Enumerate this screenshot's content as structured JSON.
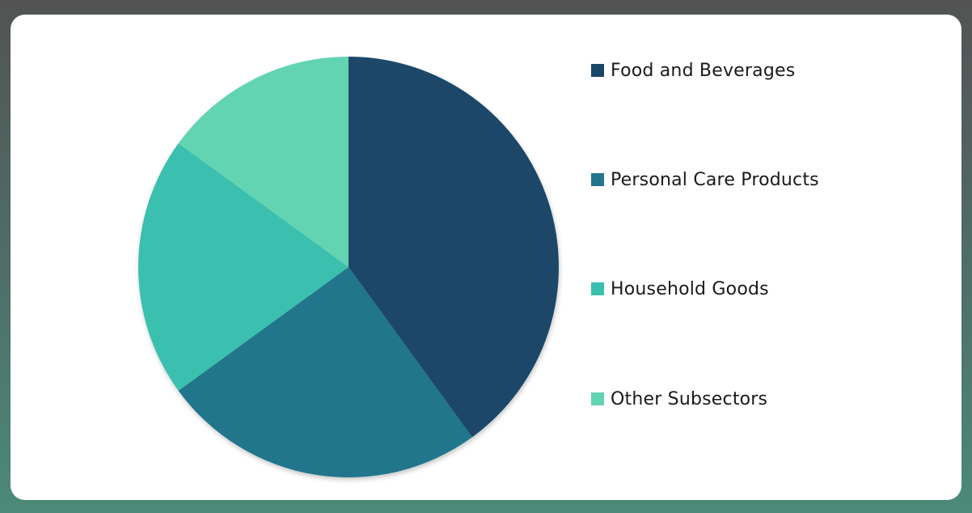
{
  "chart_data": {
    "type": "pie",
    "title": "",
    "legend_position": "right",
    "series": [
      {
        "name": "Food and Beverages",
        "value": 40,
        "color": "#1a4767"
      },
      {
        "name": "Personal Care Products",
        "value": 25,
        "color": "#23768b"
      },
      {
        "name": "Household Goods",
        "value": 20,
        "color": "#3abfae"
      },
      {
        "name": "Other Subsectors",
        "value": 15,
        "color": "#62d4b2"
      }
    ]
  }
}
